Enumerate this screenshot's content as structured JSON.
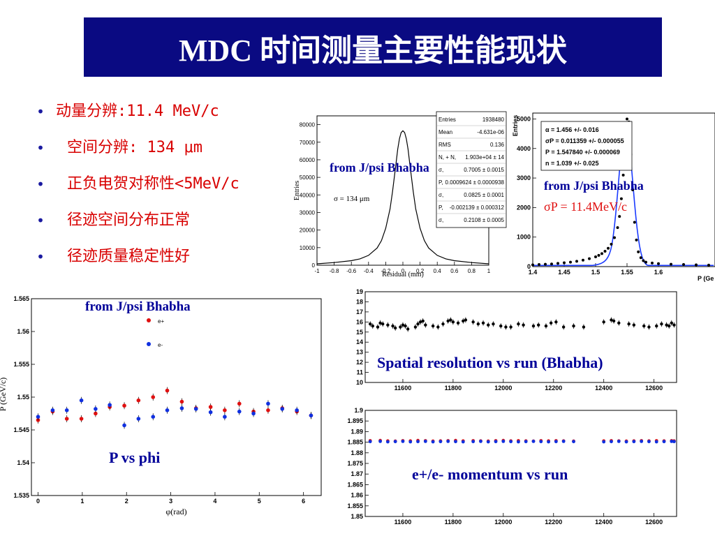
{
  "title": "MDC 时间测量主要性能现状",
  "bullets": [
    "动量分辨:11.4 MeV/c",
    "空间分辨: 134 μm",
    "正负电贺对称性<5MeV/c",
    "径迹空间分布正常",
    "径迹质量稳定性好"
  ],
  "colors": {
    "title_bg": "#0a0a82",
    "bullet_text": "#d80000",
    "label_blue": "#000099",
    "fit_blue": "#1a3aff",
    "marker_red": "#e01010",
    "marker_blue": "#1030e0"
  },
  "chart_data": [
    {
      "type": "line",
      "id": "residual",
      "annotation": "from J/psi Bhabha",
      "inset_text": "σ = 134 μm",
      "xlabel": "Residual (mm)",
      "ylabel": "Entries",
      "xlim": [
        -1,
        1
      ],
      "ylim": [
        0,
        85000
      ],
      "x_ticks": [
        "-1",
        "-0.8",
        "-0.6",
        "-0.4",
        "-0.2",
        "0",
        "0.2",
        "0.4",
        "0.6",
        "0.8",
        "1"
      ],
      "y_ticks": [
        "0",
        "10000",
        "20000",
        "30000",
        "40000",
        "50000",
        "60000",
        "70000",
        "80000"
      ],
      "x": [
        -1,
        -0.8,
        -0.6,
        -0.5,
        -0.4,
        -0.3,
        -0.25,
        -0.2,
        -0.15,
        -0.12,
        -0.1,
        -0.08,
        -0.06,
        -0.04,
        -0.02,
        0,
        0.02,
        0.04,
        0.06,
        0.08,
        0.1,
        0.12,
        0.15,
        0.2,
        0.25,
        0.3,
        0.4,
        0.5,
        0.6,
        0.8,
        1
      ],
      "y": [
        800,
        1500,
        2600,
        3600,
        5600,
        9800,
        14000,
        21000,
        32000,
        42000,
        50000,
        58000,
        66000,
        72000,
        75500,
        76500,
        75500,
        72000,
        66000,
        58000,
        50000,
        42000,
        32000,
        21000,
        14000,
        9800,
        5600,
        3600,
        2600,
        1500,
        800
      ],
      "stats": [
        [
          "Entries",
          "1938480"
        ],
        [
          "Mean",
          "-4.631e-06"
        ],
        [
          "RMS",
          "0.136"
        ],
        [
          "N, + N,",
          "1.903e+04 ± 14"
        ],
        [
          "σ,",
          "0.7005 ± 0.0015"
        ],
        [
          "P,",
          "0.0009624 ± 0.0000938"
        ],
        [
          "σ,",
          "0.0825 ± 0.0001"
        ],
        [
          "P,",
          "-0.002139 ± 0.000312"
        ],
        [
          "σ,",
          "0.2108 ± 0.0005"
        ]
      ]
    },
    {
      "type": "scatter",
      "id": "momentum-peak",
      "annotation": "from J/psi Bhabha",
      "annotation2": "σP = 11.4MeV/c",
      "xlabel": "P (Ge",
      "ylabel": "Entries",
      "xlim": [
        1.4,
        1.69
      ],
      "ylim": [
        0,
        5200
      ],
      "x_ticks": [
        "1.4",
        "1.45",
        "1.5",
        "1.55",
        "1.6"
      ],
      "y_ticks": [
        "0",
        "1000",
        "2000",
        "3000",
        "4000",
        "5000"
      ],
      "stats": [
        "α = 1.456 +/- 0.016",
        "σP = 0.011359 +/- 0.000055",
        "P = 1.547840 +/- 0.000069",
        "n = 1.039 +/- 0.025"
      ],
      "x": [
        1.4,
        1.41,
        1.42,
        1.43,
        1.44,
        1.45,
        1.46,
        1.47,
        1.48,
        1.49,
        1.5,
        1.505,
        1.51,
        1.515,
        1.52,
        1.525,
        1.53,
        1.535,
        1.538,
        1.541,
        1.544,
        1.547,
        1.55,
        1.553,
        1.556,
        1.559,
        1.562,
        1.565,
        1.568,
        1.572,
        1.576,
        1.58,
        1.59,
        1.6,
        1.62,
        1.64,
        1.66,
        1.68
      ],
      "y": [
        60,
        70,
        80,
        90,
        110,
        130,
        150,
        180,
        220,
        270,
        330,
        380,
        440,
        520,
        620,
        760,
        980,
        1320,
        1700,
        2300,
        3100,
        3900,
        5000,
        4900,
        3800,
        2600,
        1500,
        900,
        500,
        300,
        200,
        150,
        120,
        100,
        80,
        70,
        60,
        50
      ]
    },
    {
      "type": "scatter",
      "id": "p-vs-phi",
      "annotation": "from J/psi Bhabha",
      "caption": "P vs phi",
      "xlabel": "φ(rad)",
      "ylabel": "P (GeV/c)",
      "xlim": [
        -0.15,
        6.4
      ],
      "ylim": [
        1.535,
        1.565
      ],
      "x_ticks": [
        "0",
        "1",
        "2",
        "3",
        "4",
        "5",
        "6"
      ],
      "y_ticks": [
        "1.535",
        "1.54",
        "1.545",
        "1.55",
        "1.555",
        "1.56",
        "1.565"
      ],
      "legend": [
        "e+",
        "e-"
      ],
      "series": [
        {
          "name": "e+",
          "x": [
            0,
            0.33,
            0.65,
            0.98,
            1.3,
            1.62,
            1.95,
            2.27,
            2.6,
            2.92,
            3.25,
            3.57,
            3.9,
            4.22,
            4.55,
            4.87,
            5.2,
            5.52,
            5.85,
            6.17
          ],
          "y": [
            1.5465,
            1.5478,
            1.5467,
            1.5467,
            1.5475,
            1.5485,
            1.5487,
            1.5495,
            1.55,
            1.551,
            1.5493,
            1.5483,
            1.5485,
            1.548,
            1.549,
            1.5478,
            1.548,
            1.5483,
            1.5478,
            1.5472
          ]
        },
        {
          "name": "e-",
          "x": [
            0,
            0.33,
            0.65,
            0.98,
            1.3,
            1.62,
            1.95,
            2.27,
            2.6,
            2.92,
            3.25,
            3.57,
            3.9,
            4.22,
            4.55,
            4.87,
            5.2,
            5.52,
            5.85,
            6.17
          ],
          "y": [
            1.547,
            1.548,
            1.548,
            1.5495,
            1.5482,
            1.5488,
            1.5457,
            1.5467,
            1.547,
            1.548,
            1.5483,
            1.5482,
            1.5477,
            1.547,
            1.5478,
            1.5475,
            1.549,
            1.5482,
            1.548,
            1.5472
          ]
        }
      ]
    },
    {
      "type": "scatter",
      "id": "spatial-vs-run",
      "caption": "Spatial resolution vs run (Bhabha)",
      "xlim": [
        11450,
        12690
      ],
      "ylim": [
        10,
        19
      ],
      "x_ticks": [
        "11600",
        "11800",
        "12000",
        "12200",
        "12400",
        "12600"
      ],
      "y_ticks": [
        "10",
        "11",
        "12",
        "13",
        "14",
        "15",
        "16",
        "17",
        "18",
        "19"
      ],
      "x": [
        11470,
        11480,
        11500,
        11510,
        11520,
        11540,
        11560,
        11570,
        11590,
        11600,
        11610,
        11620,
        11650,
        11660,
        11670,
        11680,
        11690,
        11720,
        11740,
        11760,
        11780,
        11790,
        11800,
        11820,
        11840,
        11850,
        11880,
        11900,
        11920,
        11940,
        11960,
        11990,
        12010,
        12030,
        12060,
        12080,
        12120,
        12140,
        12170,
        12190,
        12210,
        12240,
        12280,
        12320,
        12400,
        12430,
        12440,
        12460,
        12500,
        12520,
        12560,
        12580,
        12610,
        12630,
        12650,
        12660,
        12670,
        12680
      ],
      "y": [
        15.8,
        15.6,
        15.5,
        15.9,
        15.8,
        15.7,
        15.6,
        15.4,
        15.5,
        15.7,
        15.6,
        15.3,
        15.5,
        15.8,
        16.0,
        16.1,
        15.7,
        15.6,
        15.5,
        15.8,
        16.1,
        16.2,
        16.0,
        15.9,
        16.1,
        16.2,
        16.0,
        15.8,
        15.9,
        15.7,
        15.8,
        15.6,
        15.5,
        15.5,
        15.8,
        15.7,
        15.6,
        15.7,
        15.6,
        15.9,
        16.0,
        15.5,
        15.6,
        15.5,
        16.0,
        16.2,
        16.1,
        15.9,
        15.8,
        15.7,
        15.6,
        15.5,
        15.6,
        15.8,
        15.7,
        15.6,
        15.9,
        15.7
      ]
    },
    {
      "type": "scatter",
      "id": "momentum-vs-run",
      "caption": "e+/e- momentum vs run",
      "xlim": [
        11450,
        12690
      ],
      "ylim": [
        1.85,
        1.9
      ],
      "x_ticks": [
        "11600",
        "11800",
        "12000",
        "12200",
        "12400",
        "12600"
      ],
      "y_ticks": [
        "1.85",
        "1.855",
        "1.86",
        "1.865",
        "1.87",
        "1.875",
        "1.88",
        "1.885",
        "1.89",
        "1.895",
        "1.9"
      ],
      "series": [
        {
          "name": "e+",
          "x": [
            11470,
            11510,
            11540,
            11570,
            11600,
            11630,
            11660,
            11690,
            11720,
            11750,
            11780,
            11810,
            11840,
            11880,
            11910,
            11940,
            11970,
            12000,
            12030,
            12060,
            12090,
            12120,
            12150,
            12180,
            12210,
            12240,
            12280,
            12400,
            12430,
            12460,
            12490,
            12520,
            12550,
            12580,
            12610,
            12640,
            12670,
            12680
          ],
          "y": [
            1.8857,
            1.8858,
            1.8856,
            1.8855,
            1.8857,
            1.8856,
            1.8858,
            1.8857,
            1.8855,
            1.8856,
            1.8857,
            1.8858,
            1.8856,
            1.8857,
            1.8856,
            1.8855,
            1.8857,
            1.8858,
            1.8856,
            1.8857,
            1.8856,
            1.8855,
            1.8857,
            1.8856,
            1.8857,
            1.8856,
            1.8855,
            1.8856,
            1.8857,
            1.8856,
            1.8855,
            1.8856,
            1.8857,
            1.8856,
            1.8857,
            1.8856,
            1.8857,
            1.8856
          ]
        },
        {
          "name": "e-",
          "x": [
            11470,
            11510,
            11540,
            11570,
            11600,
            11630,
            11660,
            11690,
            11720,
            11750,
            11780,
            11810,
            11840,
            11880,
            11910,
            11940,
            11970,
            12000,
            12030,
            12060,
            12090,
            12120,
            12150,
            12180,
            12210,
            12240,
            12280,
            12400,
            12430,
            12460,
            12490,
            12520,
            12550,
            12580,
            12610,
            12640,
            12670,
            12680
          ],
          "y": [
            1.8853,
            1.8854,
            1.8852,
            1.8853,
            1.8854,
            1.8852,
            1.8853,
            1.8854,
            1.8852,
            1.8853,
            1.8854,
            1.8853,
            1.8852,
            1.8853,
            1.8854,
            1.8852,
            1.8853,
            1.8854,
            1.8853,
            1.8852,
            1.8853,
            1.8854,
            1.8853,
            1.8852,
            1.8853,
            1.8854,
            1.8853,
            1.8852,
            1.8853,
            1.8854,
            1.8852,
            1.8853,
            1.8854,
            1.8853,
            1.8852,
            1.8853,
            1.8854,
            1.8853
          ]
        }
      ]
    }
  ]
}
